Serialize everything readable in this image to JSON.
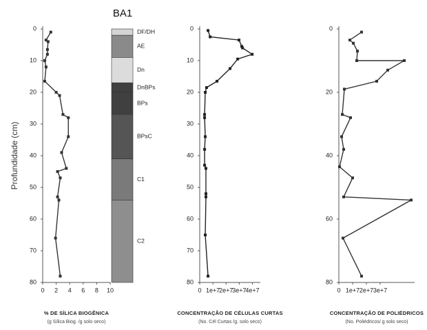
{
  "chart_data": [
    {
      "type": "profile",
      "ylabel": "Profundidade (cm)",
      "xlabel": "% DE SÍLICA BIOGÊNICA",
      "subtitle": "(g Sílica Biog. /g solo seco)",
      "xlim": [
        0,
        10
      ],
      "xticks": [
        0,
        2,
        4,
        6,
        8,
        10
      ],
      "ylim": [
        0,
        80
      ],
      "yticks": [
        0,
        10,
        20,
        30,
        40,
        50,
        60,
        70,
        80
      ],
      "depths": [
        1,
        3.5,
        4,
        6.5,
        8,
        10,
        12,
        16.5,
        20,
        21,
        27,
        28,
        34,
        39,
        44,
        45,
        47,
        53,
        54,
        66,
        78
      ],
      "series": [
        {
          "color": "#333333",
          "values": [
            1.2,
            0.5,
            0.8,
            0.7,
            0.7,
            0.3,
            0.5,
            0.3,
            2,
            2.5,
            3,
            3.8,
            3.8,
            2.8,
            3.5,
            2.2,
            2.6,
            2.2,
            2.4,
            1.9,
            2.6
          ]
        }
      ]
    },
    {
      "type": "strata",
      "title": "BA1",
      "ylim": [
        0,
        80
      ],
      "layers": [
        {
          "label": "DF/DH",
          "top": 0,
          "bottom": 2,
          "color": "#d4d4d4"
        },
        {
          "label": "AE",
          "top": 2,
          "bottom": 9,
          "color": "#8a8a8a"
        },
        {
          "label": "Dn",
          "top": 9,
          "bottom": 17,
          "color": "#dcdcdc"
        },
        {
          "label": "DnBPs",
          "top": 17,
          "bottom": 20,
          "color": "#404040"
        },
        {
          "label": "BPs",
          "top": 20,
          "bottom": 27,
          "color": "#404040"
        },
        {
          "label": "BPsC",
          "top": 27,
          "bottom": 41,
          "color": "#555555"
        },
        {
          "label": "C1",
          "top": 41,
          "bottom": 54,
          "color": "#7a7a7a"
        },
        {
          "label": "C2",
          "top": 54,
          "bottom": 80,
          "color": "#8e8e8e"
        }
      ]
    },
    {
      "type": "profile",
      "xlabel": "CONCENTRAÇÃO DE CÉLULAS CURTAS",
      "subtitle": "(No. Cél Curtas /g. solo seco)",
      "xlim": [
        0,
        46000000
      ],
      "xticks": [
        0,
        {
          "value": 10000000,
          "label": "1e+7"
        },
        {
          "value": 20000000,
          "label": "2e+7"
        },
        {
          "value": 30000000,
          "label": "3e+7"
        },
        {
          "value": 40000000,
          "label": "4e+7"
        }
      ],
      "ylim": [
        0,
        80
      ],
      "yticks": [
        0,
        10,
        20,
        30,
        40,
        50,
        60,
        70,
        80
      ],
      "depths": [
        0.5,
        2.5,
        3.5,
        5.5,
        6,
        8,
        9.5,
        12.5,
        16.5,
        18.5,
        20,
        27,
        28,
        34,
        38,
        43,
        44,
        52,
        53,
        65,
        78
      ],
      "series": [
        {
          "color": "#222222",
          "values": [
            6300000,
            7900000,
            29800000,
            31900000,
            32500000,
            39800000,
            28800000,
            23000000,
            13100000,
            5200000,
            4200000,
            3700000,
            3700000,
            4200000,
            3700000,
            3700000,
            4700000,
            4700000,
            4700000,
            4200000,
            6300000
          ]
        }
      ]
    },
    {
      "type": "profile",
      "xlabel": "CONCENTRAÇÃO DE POLIÉDRICOS",
      "subtitle": "(No. Poliédricos/ g solo seco)",
      "xlim": [
        0,
        55000000
      ],
      "xticks": [
        0,
        {
          "value": 10000000,
          "label": "1e+7"
        },
        {
          "value": 20000000,
          "label": "2e+7"
        },
        {
          "value": 30000000,
          "label": "3e+7"
        }
      ],
      "ylim": [
        0,
        80
      ],
      "yticks": [
        0,
        20,
        40,
        60,
        80
      ],
      "depths": [
        1,
        3.5,
        4.5,
        7,
        10,
        10,
        13,
        16.5,
        19,
        27,
        28,
        34,
        38,
        43.5,
        47,
        53,
        54,
        66,
        78
      ],
      "series": [
        {
          "color": "#333333",
          "values": [
            16500000,
            8000000,
            10500000,
            13500000,
            13000000,
            47500000,
            35500000,
            27500000,
            4000000,
            2500000,
            8500000,
            2000000,
            3500000,
            500000,
            10000000,
            3500000,
            52500000,
            3000000,
            16500000
          ]
        }
      ]
    }
  ]
}
